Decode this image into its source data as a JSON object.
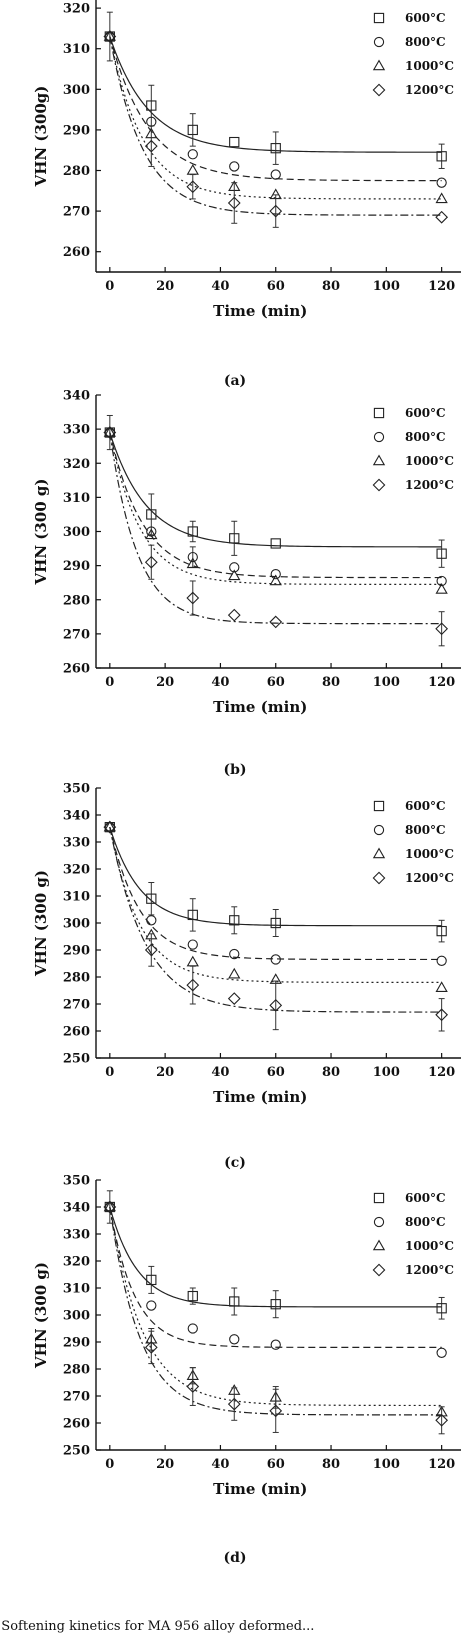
{
  "chart_data": [
    {
      "type": "scatter",
      "panel_label": "(a)",
      "xlabel": "Time (min)",
      "ylabel": "VHN (300g)",
      "xlim": [
        -5,
        127
      ],
      "ylim": [
        255,
        322
      ],
      "xticks": [
        0,
        20,
        40,
        60,
        80,
        100,
        120
      ],
      "yticks": [
        260,
        270,
        280,
        290,
        300,
        310,
        320
      ],
      "legend_position": "top-right",
      "series": [
        {
          "name": "600°C",
          "marker": "square",
          "line": "solid",
          "x": [
            0,
            15,
            30,
            45,
            60,
            120
          ],
          "y": [
            313,
            296,
            290,
            287,
            285.5,
            283.5
          ],
          "err": [
            6,
            5,
            4,
            0,
            4,
            3
          ],
          "fit": {
            "y0": 313,
            "yinf": 284.5,
            "tau": 14
          }
        },
        {
          "name": "800°C",
          "marker": "circle",
          "line": "dashed",
          "x": [
            0,
            15,
            30,
            45,
            60,
            120
          ],
          "y": [
            313,
            292,
            284,
            281,
            279,
            277
          ],
          "err": [
            0,
            0,
            0,
            0,
            0,
            0
          ],
          "fit": {
            "y0": 313,
            "yinf": 277.5,
            "tau": 14
          }
        },
        {
          "name": "1000°C",
          "marker": "triangle",
          "line": "dotted",
          "x": [
            0,
            15,
            30,
            45,
            60,
            120
          ],
          "y": [
            313,
            289,
            280,
            276,
            274,
            273
          ],
          "err": [
            0,
            0,
            0,
            0,
            0,
            0
          ],
          "fit": {
            "y0": 313,
            "yinf": 273,
            "tau": 12
          }
        },
        {
          "name": "1200°C",
          "marker": "diamond",
          "line": "dashdot",
          "x": [
            0,
            15,
            30,
            45,
            60,
            120
          ],
          "y": [
            313,
            286,
            276,
            272,
            270,
            268.5
          ],
          "err": [
            0,
            5,
            3,
            5,
            4,
            0
          ],
          "fit": {
            "y0": 313,
            "yinf": 269,
            "tau": 12
          }
        }
      ]
    },
    {
      "type": "scatter",
      "panel_label": "(b)",
      "xlabel": "Time (min)",
      "ylabel": "VHN (300 g)",
      "xlim": [
        -5,
        127
      ],
      "ylim": [
        260,
        340
      ],
      "xticks": [
        0,
        20,
        40,
        60,
        80,
        100,
        120
      ],
      "yticks": [
        260,
        270,
        280,
        290,
        300,
        310,
        320,
        330,
        340
      ],
      "legend_position": "top-right",
      "series": [
        {
          "name": "600°C",
          "marker": "square",
          "line": "solid",
          "x": [
            0,
            15,
            30,
            45,
            60,
            120
          ],
          "y": [
            329,
            305,
            300,
            298,
            296.5,
            293.5
          ],
          "err": [
            5,
            6,
            3,
            5,
            0,
            4
          ],
          "fit": {
            "y0": 329,
            "yinf": 295.5,
            "tau": 13
          }
        },
        {
          "name": "800°C",
          "marker": "circle",
          "line": "dashed",
          "x": [
            0,
            15,
            30,
            45,
            60,
            120
          ],
          "y": [
            329,
            300,
            292.5,
            289.5,
            287.5,
            285.5
          ],
          "err": [
            0,
            0,
            3,
            0,
            0,
            0
          ],
          "fit": {
            "y0": 329,
            "yinf": 286.5,
            "tau": 12
          }
        },
        {
          "name": "1000°C",
          "marker": "triangle",
          "line": "dotted",
          "x": [
            0,
            15,
            30,
            45,
            60,
            120
          ],
          "y": [
            329,
            299,
            290.5,
            287,
            285.5,
            283
          ],
          "err": [
            0,
            0,
            0,
            0,
            0,
            0
          ],
          "fit": {
            "y0": 329,
            "yinf": 284.5,
            "tau": 11
          }
        },
        {
          "name": "1200°C",
          "marker": "diamond",
          "line": "dashdot",
          "x": [
            0,
            15,
            30,
            45,
            60,
            120
          ],
          "y": [
            329,
            291,
            280.5,
            275.5,
            273.5,
            271.5
          ],
          "err": [
            0,
            5,
            5,
            0,
            0,
            5
          ],
          "fit": {
            "y0": 329,
            "yinf": 273,
            "tau": 10
          }
        }
      ]
    },
    {
      "type": "scatter",
      "panel_label": "(c)",
      "xlabel": "Time (min)",
      "ylabel": "VHN (300 g)",
      "xlim": [
        -5,
        127
      ],
      "ylim": [
        250,
        350
      ],
      "xticks": [
        0,
        20,
        40,
        60,
        80,
        100,
        120
      ],
      "yticks": [
        250,
        260,
        270,
        280,
        290,
        300,
        310,
        320,
        330,
        340,
        350
      ],
      "legend_position": "top-right",
      "series": [
        {
          "name": "600°C",
          "marker": "square",
          "line": "solid",
          "x": [
            0,
            15,
            30,
            45,
            60,
            120
          ],
          "y": [
            335.5,
            309,
            303,
            301,
            300,
            297
          ],
          "err": [
            0,
            6,
            6,
            5,
            5,
            4
          ],
          "fit": {
            "y0": 335.5,
            "yinf": 299,
            "tau": 11
          }
        },
        {
          "name": "800°C",
          "marker": "circle",
          "line": "dashed",
          "x": [
            0,
            15,
            30,
            45,
            60,
            120
          ],
          "y": [
            335.5,
            301,
            292,
            288.5,
            286.5,
            286
          ],
          "err": [
            0,
            0,
            0,
            0,
            0,
            0
          ],
          "fit": {
            "y0": 335.5,
            "yinf": 286.5,
            "tau": 11
          }
        },
        {
          "name": "1000°C",
          "marker": "triangle",
          "line": "dotted",
          "x": [
            0,
            15,
            30,
            45,
            60,
            120
          ],
          "y": [
            335.5,
            295.5,
            285.5,
            281,
            279,
            276
          ],
          "err": [
            0,
            0,
            0,
            0,
            0,
            0
          ],
          "fit": {
            "y0": 335.5,
            "yinf": 278,
            "tau": 11
          }
        },
        {
          "name": "1200°C",
          "marker": "diamond",
          "line": "dashdot",
          "x": [
            0,
            15,
            30,
            45,
            60,
            120
          ],
          "y": [
            335.5,
            290,
            277,
            272,
            269.5,
            266
          ],
          "err": [
            0,
            6,
            7,
            0,
            9,
            6
          ],
          "fit": {
            "y0": 335.5,
            "yinf": 267,
            "tau": 13
          }
        }
      ]
    },
    {
      "type": "scatter",
      "panel_label": "(d)",
      "xlabel": "Time (min)",
      "ylabel": "VHN (300 g)",
      "xlim": [
        -5,
        127
      ],
      "ylim": [
        250,
        350
      ],
      "xticks": [
        0,
        20,
        40,
        60,
        80,
        100,
        120
      ],
      "yticks": [
        250,
        260,
        270,
        280,
        290,
        300,
        310,
        320,
        330,
        340,
        350
      ],
      "legend_position": "top-right",
      "series": [
        {
          "name": "600°C",
          "marker": "square",
          "line": "solid",
          "x": [
            0,
            15,
            30,
            45,
            60,
            120
          ],
          "y": [
            340,
            313,
            307,
            305,
            304,
            302.5
          ],
          "err": [
            6,
            5,
            3,
            5,
            5,
            4
          ],
          "fit": {
            "y0": 340,
            "yinf": 303,
            "tau": 10
          }
        },
        {
          "name": "800°C",
          "marker": "circle",
          "line": "dashed",
          "x": [
            0,
            15,
            30,
            45,
            60,
            120
          ],
          "y": [
            340,
            303.5,
            295,
            291,
            289,
            286
          ],
          "err": [
            0,
            0,
            0,
            0,
            0,
            0
          ],
          "fit": {
            "y0": 340,
            "yinf": 288,
            "tau": 9
          }
        },
        {
          "name": "1000°C",
          "marker": "triangle",
          "line": "dotted",
          "x": [
            0,
            15,
            30,
            45,
            60,
            120
          ],
          "y": [
            340,
            291,
            277.5,
            272,
            269.5,
            264
          ],
          "err": [
            0,
            4,
            3,
            0,
            4,
            0
          ],
          "fit": {
            "y0": 340,
            "yinf": 266.5,
            "tau": 12
          }
        },
        {
          "name": "1200°C",
          "marker": "diamond",
          "line": "dashdot",
          "x": [
            0,
            15,
            30,
            45,
            60,
            120
          ],
          "y": [
            340,
            288,
            273.5,
            267,
            264.5,
            261
          ],
          "err": [
            0,
            6,
            7,
            6,
            8,
            5
          ],
          "fit": {
            "y0": 340,
            "yinf": 263,
            "tau": 11
          }
        }
      ]
    }
  ],
  "caption": "Fig. 1 — Softening kinetics for MA 956 alloy deformed..."
}
